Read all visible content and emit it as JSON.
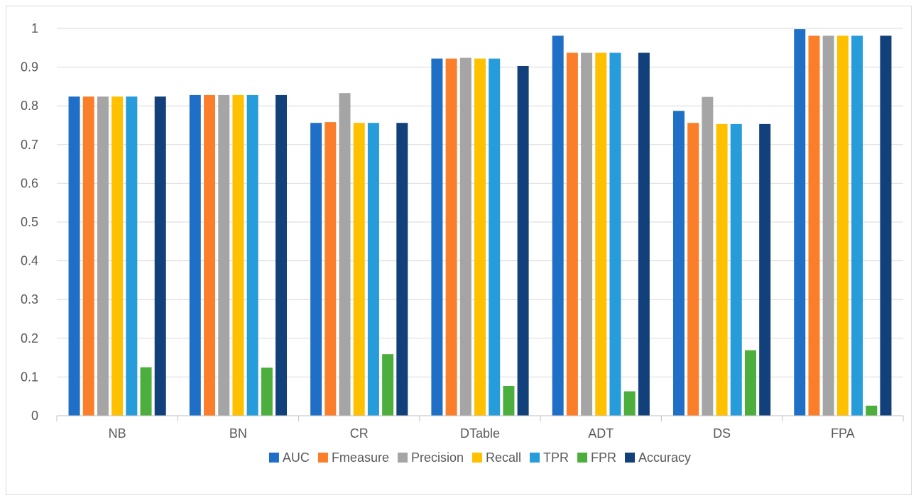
{
  "chart_data": {
    "type": "bar",
    "title": "",
    "xlabel": "",
    "ylabel": "",
    "ylim": [
      0,
      1
    ],
    "y_ticks": [
      "0",
      "0.1",
      "0.2",
      "0.3",
      "0.4",
      "0.5",
      "0.6",
      "0.7",
      "0.8",
      "0.9",
      "1"
    ],
    "grid": true,
    "legend_position": "bottom",
    "categories": [
      "NB",
      "BN",
      "CR",
      "DTable",
      "ADT",
      "DS",
      "FPA"
    ],
    "series": [
      {
        "name": "AUC",
        "color": "#1f6fc6",
        "values": [
          0.824,
          0.828,
          0.756,
          0.922,
          0.981,
          0.787,
          0.998
        ]
      },
      {
        "name": "Fmeasure",
        "color": "#fb7f2a",
        "values": [
          0.824,
          0.828,
          0.758,
          0.922,
          0.937,
          0.756,
          0.981
        ]
      },
      {
        "name": "Precision",
        "color": "#a5a5a5",
        "values": [
          0.824,
          0.828,
          0.833,
          0.924,
          0.937,
          0.823,
          0.981
        ]
      },
      {
        "name": "Recall",
        "color": "#ffc000",
        "values": [
          0.824,
          0.828,
          0.756,
          0.922,
          0.937,
          0.753,
          0.981
        ]
      },
      {
        "name": "TPR",
        "color": "#269cdb",
        "values": [
          0.824,
          0.828,
          0.756,
          0.922,
          0.937,
          0.753,
          0.981
        ]
      },
      {
        "name": "FPR",
        "color": "#4cae3c",
        "values": [
          0.125,
          0.124,
          0.159,
          0.077,
          0.063,
          0.169,
          0.026
        ]
      },
      {
        "name": "Accuracy",
        "color": "#12407a",
        "values": [
          0.824,
          0.828,
          0.756,
          0.903,
          0.937,
          0.753,
          0.981
        ]
      }
    ]
  }
}
